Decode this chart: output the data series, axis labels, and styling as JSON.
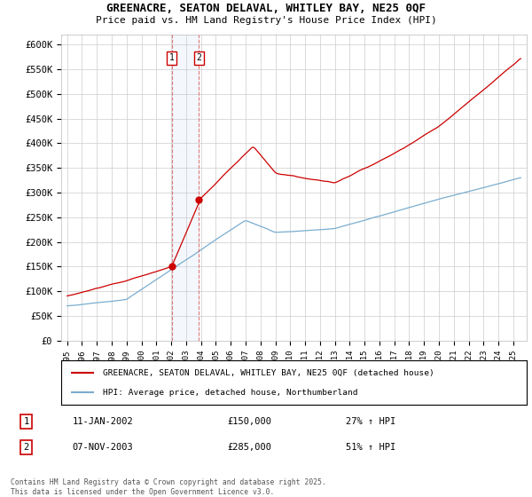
{
  "title": "GREENACRE, SEATON DELAVAL, WHITLEY BAY, NE25 0QF",
  "subtitle": "Price paid vs. HM Land Registry's House Price Index (HPI)",
  "ylabel_ticks": [
    "£0",
    "£50K",
    "£100K",
    "£150K",
    "£200K",
    "£250K",
    "£300K",
    "£350K",
    "£400K",
    "£450K",
    "£500K",
    "£550K",
    "£600K"
  ],
  "ylim": [
    0,
    620000
  ],
  "ytick_vals": [
    0,
    50000,
    100000,
    150000,
    200000,
    250000,
    300000,
    350000,
    400000,
    450000,
    500000,
    550000,
    600000
  ],
  "legend_red": "GREENACRE, SEATON DELAVAL, WHITLEY BAY, NE25 0QF (detached house)",
  "legend_blue": "HPI: Average price, detached house, Northumberland",
  "transaction1_date": "11-JAN-2002",
  "transaction1_price": "£150,000",
  "transaction1_hpi": "27% ↑ HPI",
  "transaction2_date": "07-NOV-2003",
  "transaction2_price": "£285,000",
  "transaction2_hpi": "51% ↑ HPI",
  "footer": "Contains HM Land Registry data © Crown copyright and database right 2025.\nThis data is licensed under the Open Government Licence v3.0.",
  "red_color": "#cc0000",
  "blue_color": "#7aadcf",
  "marker1_x": 2002.04,
  "marker1_y": 150000,
  "marker2_x": 2003.85,
  "marker2_y": 285000,
  "vline1_x": 2002.04,
  "vline2_x": 2003.85,
  "background_color": "#ffffff",
  "grid_color": "#cccccc",
  "xlim_left": 1994.6,
  "xlim_right": 2025.9,
  "xtick_years": [
    1995,
    1996,
    1997,
    1998,
    1999,
    2000,
    2001,
    2002,
    2003,
    2004,
    2005,
    2006,
    2007,
    2008,
    2009,
    2010,
    2011,
    2012,
    2013,
    2014,
    2015,
    2016,
    2017,
    2018,
    2019,
    2020,
    2021,
    2022,
    2023,
    2024,
    2025
  ]
}
